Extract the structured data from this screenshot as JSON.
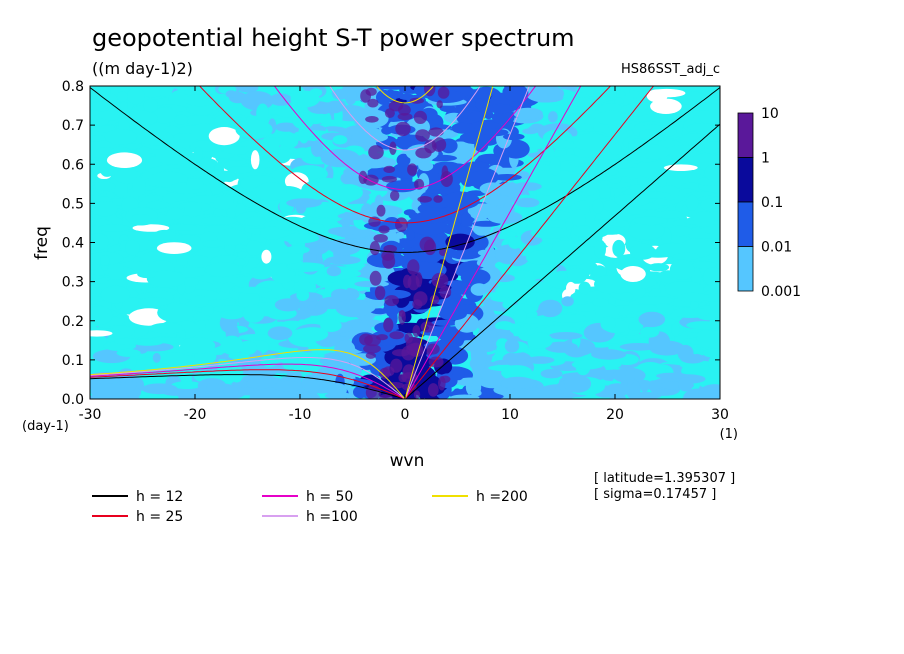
{
  "chart_data": {
    "type": "heatmap",
    "title": "geopotential height S-T power spectrum",
    "units": "((m day-1)2)",
    "dataset": "HS86SST_adj_c",
    "xlabel": "wvn",
    "xunit": "(1)",
    "ylabel": "freq",
    "yunit": "(day-1)",
    "xlim": [
      -30,
      30
    ],
    "ylim": [
      0,
      0.8
    ],
    "x_ticks": [
      "-30",
      "-20",
      "-10",
      "0",
      "10",
      "20",
      "30"
    ],
    "y_ticks": [
      "0.0",
      "0.1",
      "0.2",
      "0.3",
      "0.4",
      "0.5",
      "0.6",
      "0.7",
      "0.8"
    ],
    "colorbar": {
      "levels": [
        "10",
        "1",
        "0.1",
        "0.01",
        "0.001"
      ],
      "colors": [
        "#5a189a",
        "#0a0a9c",
        "#1f5ce8",
        "#55c6ff",
        "#29f2f2"
      ],
      "scale": "log"
    },
    "background_color": "#29f2f2",
    "equivalent_depth_curves": [
      {
        "name": "h = 12",
        "h": 12,
        "color": "#000000"
      },
      {
        "name": "h = 25",
        "h": 25,
        "color": "#e8001e"
      },
      {
        "name": "h = 50",
        "h": 50,
        "color": "#e600c8"
      },
      {
        "name": "h =100",
        "h": 100,
        "color": "#d8a0f0"
      },
      {
        "name": "h =200",
        "h": 200,
        "color": "#f0e000"
      }
    ],
    "annotations": [
      "[ latitude=1.395307 ]",
      "[ sigma=0.17457 ]"
    ],
    "legend_placement": "bottom",
    "grid": false
  }
}
